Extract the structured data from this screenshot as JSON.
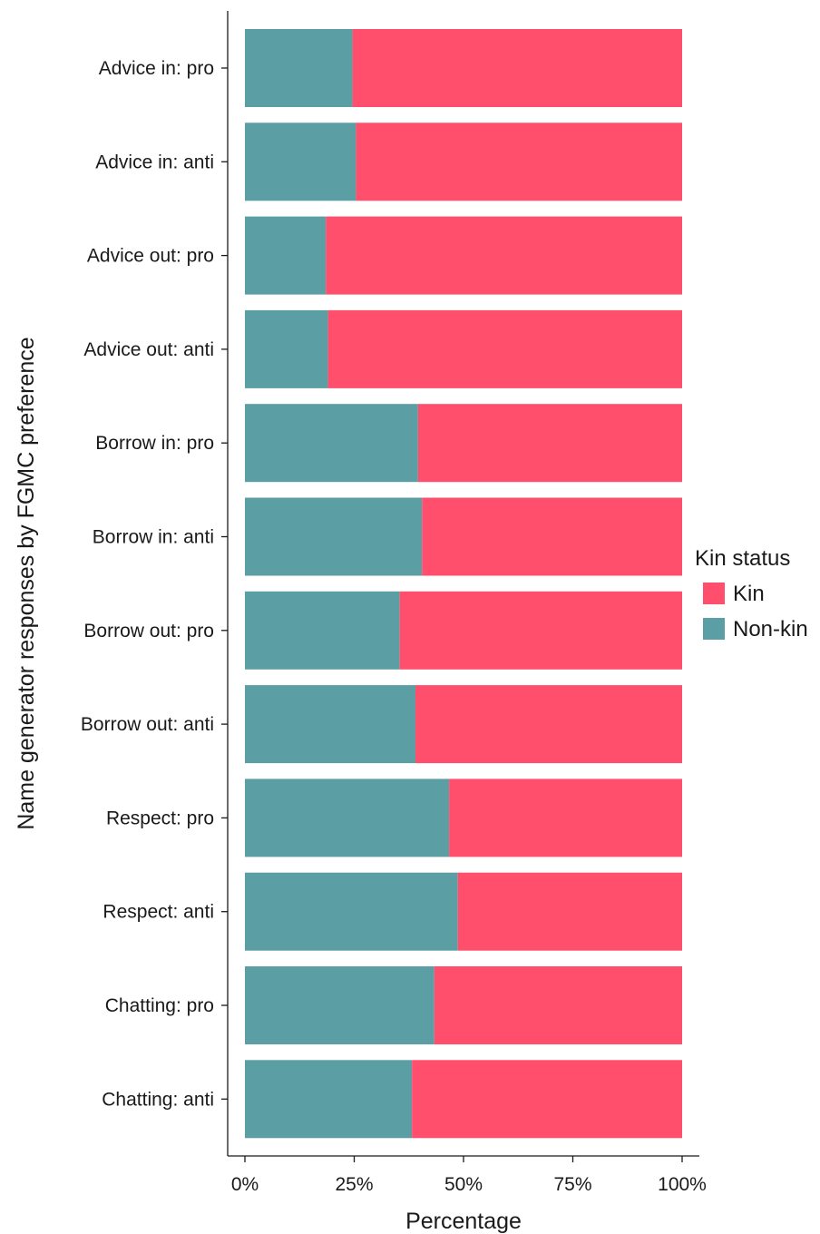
{
  "chart_data": {
    "type": "bar",
    "orientation": "horizontal",
    "stacked": true,
    "percent": true,
    "categories": [
      "Advice in: pro",
      "Advice in: anti",
      "Advice out: pro",
      "Advice out: anti",
      "Borrow in: pro",
      "Borrow in: anti",
      "Borrow out: pro",
      "Borrow out: anti",
      "Respect: pro",
      "Respect: anti",
      "Chatting: pro",
      "Chatting: anti"
    ],
    "series": [
      {
        "name": "Non-kin",
        "color": "#5b9ea3",
        "values": [
          24.6,
          25.4,
          18.5,
          19.0,
          39.6,
          40.5,
          35.4,
          39.0,
          46.7,
          48.7,
          43.3,
          38.2
        ]
      },
      {
        "name": "Kin",
        "color": "#ff4f6d",
        "values": [
          75.4,
          74.6,
          81.5,
          81.0,
          60.4,
          59.5,
          64.6,
          61.0,
          53.3,
          51.3,
          56.7,
          61.8
        ]
      }
    ],
    "xlabel": "Percentage",
    "ylabel": "Name generator responses by FGMC preference",
    "xlim": [
      0,
      100
    ],
    "xticks": [
      "0%",
      "25%",
      "50%",
      "75%",
      "100%"
    ],
    "grid": false,
    "legend": {
      "title": "Kin status",
      "entries": [
        "Kin",
        "Non-kin"
      ],
      "placement": "right"
    }
  }
}
